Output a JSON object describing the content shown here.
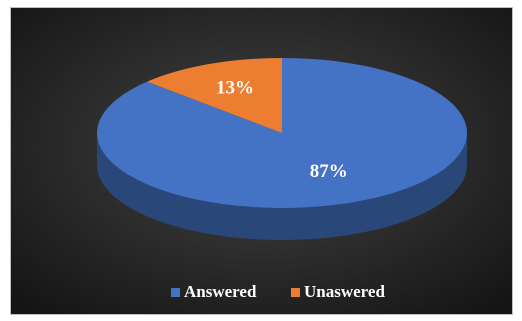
{
  "chart_data": {
    "type": "pie",
    "style": "3d",
    "categories": [
      "Answered",
      "Unaswered"
    ],
    "values": [
      87,
      13
    ],
    "labels": [
      "87%",
      "13%"
    ],
    "colors": [
      "#4472c4",
      "#ed7d31"
    ],
    "background": "#2f2f2f",
    "legend_position": "bottom"
  }
}
